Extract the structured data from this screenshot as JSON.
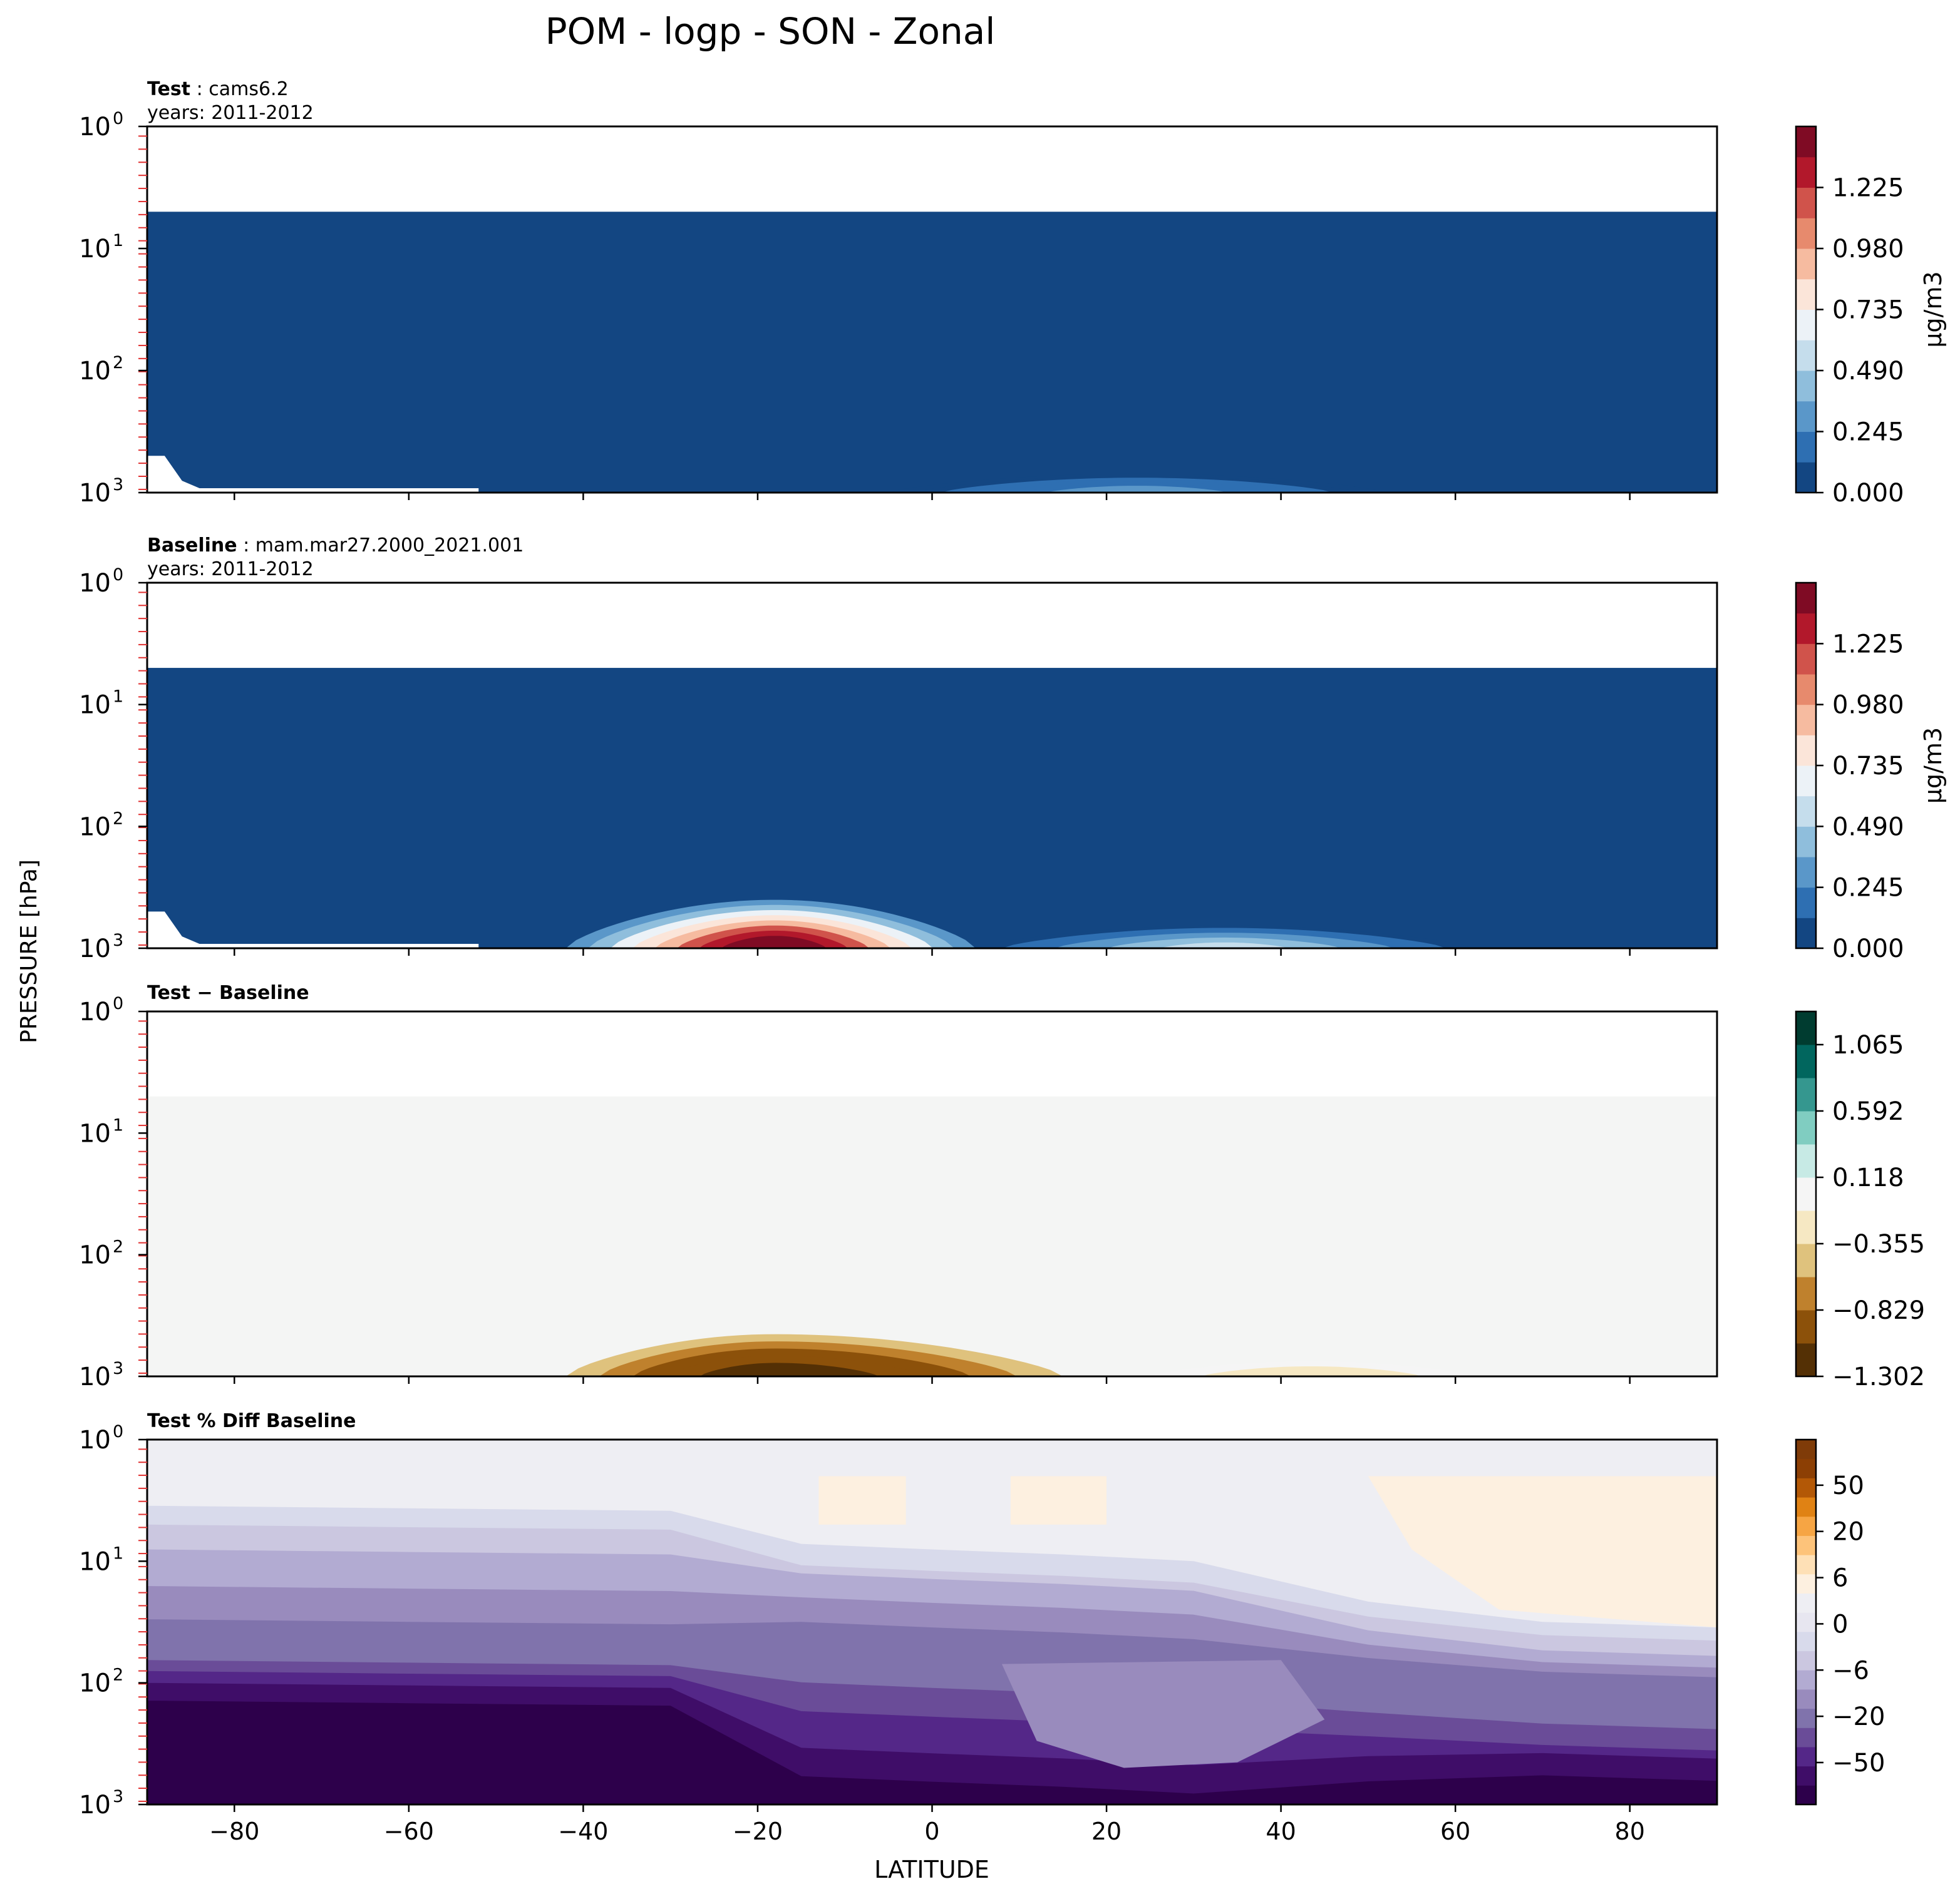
{
  "figure": {
    "title": "POM - logp - SON - Zonal",
    "ylabel": "PRESSURE [hPa]",
    "xlabel": "LATITUDE"
  },
  "chart_data": [
    {
      "type": "heatmap",
      "panel": "test",
      "title_bold": "Test",
      "title_rest": ": cams6.2",
      "subtitle": "years: 2011-2012",
      "x": {
        "label": "",
        "range": [
          -90,
          90
        ],
        "ticks": [
          -80,
          -60,
          -40,
          -20,
          0,
          20,
          40,
          60,
          80
        ],
        "show_tick_labels": false
      },
      "y": {
        "label": "",
        "scale": "log",
        "range": [
          1000,
          1
        ],
        "ticks": [
          1,
          10,
          100,
          1000
        ],
        "tick_labels": [
          "10",
          "10",
          "10",
          "10"
        ],
        "tick_exponents": [
          "0",
          "1",
          "2",
          "3"
        ]
      },
      "colorbar": {
        "label": "μg/m3",
        "ticks": [
          "0.000",
          "0.245",
          "0.490",
          "0.735",
          "0.980",
          "1.225"
        ],
        "levels": 11,
        "min": 0,
        "max": 1.35,
        "colors": [
          "#134682",
          "#2e6fb2",
          "#5a97c9",
          "#8fbedc",
          "#c5ddec",
          "#ecf2f7",
          "#fbe5d9",
          "#f6bba0",
          "#e78a6d",
          "#d0534b",
          "#b2182b",
          "#7f0b24"
        ]
      },
      "top_blank_hpa": 5,
      "features": [
        {
          "name": "surface-band",
          "lat": [
            -5,
            52
          ],
          "peak_value": 0.26,
          "top_hpa": 700
        }
      ]
    },
    {
      "type": "heatmap",
      "panel": "baseline",
      "title_bold": "Baseline",
      "title_rest": ": mam.mar27.2000_2021.001",
      "subtitle": "years: 2011-2012",
      "x": {
        "label": "",
        "range": [
          -90,
          90
        ],
        "ticks": [
          -80,
          -60,
          -40,
          -20,
          0,
          20,
          40,
          60,
          80
        ],
        "show_tick_labels": false
      },
      "y": {
        "label": "",
        "scale": "log",
        "range": [
          1000,
          1
        ],
        "ticks": [
          1,
          10,
          100,
          1000
        ],
        "tick_labels": [
          "10",
          "10",
          "10",
          "10"
        ],
        "tick_exponents": [
          "0",
          "1",
          "2",
          "3"
        ]
      },
      "colorbar": {
        "label": "μg/m3",
        "ticks": [
          "0.000",
          "0.245",
          "0.490",
          "0.735",
          "0.980",
          "1.225"
        ],
        "levels": 11,
        "min": 0,
        "max": 1.35,
        "colors": [
          "#134682",
          "#2e6fb2",
          "#5a97c9",
          "#8fbedc",
          "#c5ddec",
          "#ecf2f7",
          "#fbe5d9",
          "#f6bba0",
          "#e78a6d",
          "#d0534b",
          "#b2182b",
          "#7f0b24"
        ]
      },
      "top_blank_hpa": 5,
      "features": [
        {
          "name": "southern-plume",
          "lat": [
            -42,
            5
          ],
          "peak_lat": -18,
          "peak_value": 1.3,
          "top_hpa": 400
        },
        {
          "name": "northern-band",
          "lat": [
            5,
            62
          ],
          "peak_value": 0.45,
          "top_hpa": 650
        }
      ]
    },
    {
      "type": "heatmap",
      "panel": "difference",
      "title_bold": "Test − Baseline",
      "title_rest": "",
      "subtitle": "",
      "x": {
        "label": "",
        "range": [
          -90,
          90
        ],
        "ticks": [
          -80,
          -60,
          -40,
          -20,
          0,
          20,
          40,
          60,
          80
        ],
        "show_tick_labels": false
      },
      "y": {
        "label": "",
        "scale": "log",
        "range": [
          1000,
          1
        ],
        "ticks": [
          1,
          10,
          100,
          1000
        ],
        "tick_labels": [
          "10",
          "10",
          "10",
          "10"
        ],
        "tick_exponents": [
          "0",
          "1",
          "2",
          "3"
        ]
      },
      "colorbar": {
        "label": "",
        "ticks": [
          "−1.302",
          "−0.829",
          "−0.355",
          "0.118",
          "0.592",
          "1.065"
        ],
        "levels": 11,
        "min": -1.302,
        "max": 1.3,
        "colors": [
          "#543005",
          "#8c510a",
          "#bf812d",
          "#dfc27d",
          "#f6e8c3",
          "#f5f5f5",
          "#c7eae5",
          "#80cdc1",
          "#35978f",
          "#01665e",
          "#003c30"
        ]
      },
      "top_blank_hpa": 5,
      "features": [
        {
          "name": "negative-plume",
          "lat": [
            -42,
            15
          ],
          "peak_lat": -18,
          "peak_value": -1.25,
          "top_hpa": 450
        },
        {
          "name": "weak-north",
          "lat": [
            25,
            62
          ],
          "peak_value": -0.2,
          "top_hpa": 750
        }
      ]
    },
    {
      "type": "heatmap",
      "panel": "percent-diff",
      "title_bold": "Test % Diff Baseline",
      "title_rest": "",
      "subtitle": "",
      "x": {
        "label": "LATITUDE",
        "range": [
          -90,
          90
        ],
        "ticks": [
          -80,
          -60,
          -40,
          -20,
          0,
          20,
          40,
          60,
          80
        ],
        "show_tick_labels": true
      },
      "y": {
        "label": "",
        "scale": "log",
        "range": [
          1000,
          1
        ],
        "ticks": [
          1,
          10,
          100,
          1000
        ],
        "tick_labels": [
          "10",
          "10",
          "10",
          "10"
        ],
        "tick_exponents": [
          "0",
          "1",
          "2",
          "3"
        ]
      },
      "colorbar": {
        "label": "",
        "ticks": [
          "−50",
          "−20",
          "−6",
          "0",
          "6",
          "20",
          "50"
        ],
        "colors": [
          "#2d004b",
          "#3f0d68",
          "#542788",
          "#6a4c98",
          "#8073ac",
          "#998bbd",
          "#b2abd2",
          "#cbc7e0",
          "#d8daeb",
          "#e7e6f0",
          "#eeeef3",
          "#fdf0e0",
          "#fee0b6",
          "#fdc37a",
          "#f6a544",
          "#e08214",
          "#b35806",
          "#8c3f04",
          "#7f3b08"
        ]
      },
      "features": [
        {
          "name": "deep-negative",
          "value": -60
        },
        {
          "name": "upper-positive",
          "value": 2
        }
      ]
    }
  ]
}
